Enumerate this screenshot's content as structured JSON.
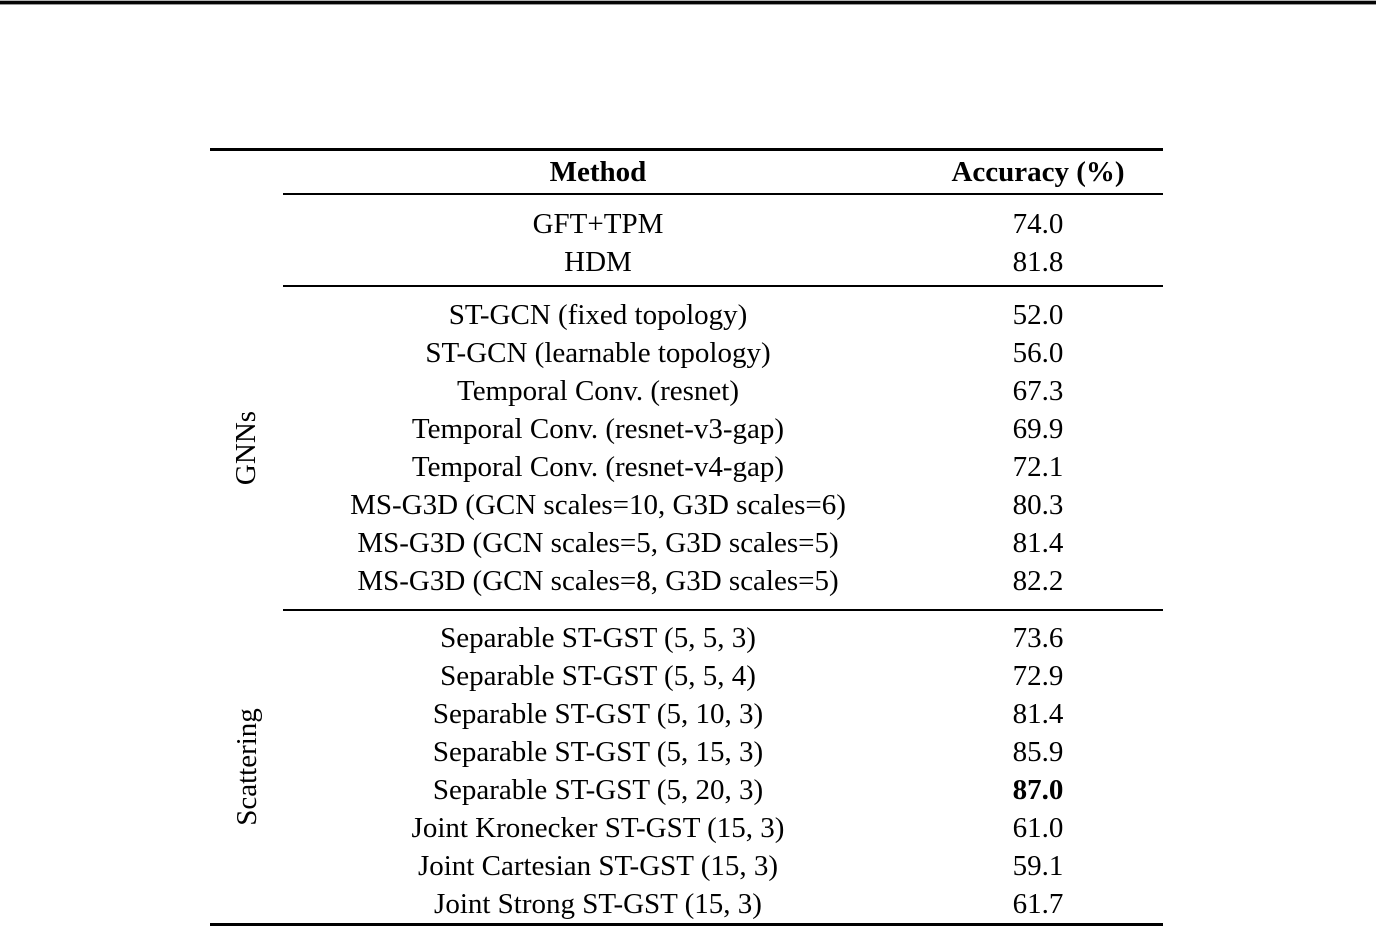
{
  "page": {
    "background_color": "#ffffff",
    "top_edge_color": "#050505"
  },
  "table": {
    "headers": {
      "method": "Method",
      "accuracy": "Accuracy (%)"
    },
    "groups": [
      {
        "label": "",
        "rows": [
          {
            "method": "GFT+TPM",
            "accuracy": "74.0"
          },
          {
            "method": "HDM",
            "accuracy": "81.8"
          }
        ]
      },
      {
        "label": "GNNs",
        "rows": [
          {
            "method": "ST-GCN (fixed topology)",
            "accuracy": "52.0"
          },
          {
            "method": "ST-GCN (learnable topology)",
            "accuracy": "56.0"
          },
          {
            "method": "Temporal Conv. (resnet)",
            "accuracy": "67.3"
          },
          {
            "method": "Temporal Conv. (resnet-v3-gap)",
            "accuracy": "69.9"
          },
          {
            "method": "Temporal Conv. (resnet-v4-gap)",
            "accuracy": "72.1"
          },
          {
            "method": "MS-G3D (GCN scales=10, G3D scales=6)",
            "accuracy": "80.3"
          },
          {
            "method": "MS-G3D (GCN scales=5, G3D scales=5)",
            "accuracy": "81.4"
          },
          {
            "method": "MS-G3D (GCN scales=8, G3D scales=5)",
            "accuracy": "82.2"
          }
        ]
      },
      {
        "label": "Scattering",
        "rows": [
          {
            "method": "Separable ST-GST (5, 5, 3)",
            "accuracy": "73.6"
          },
          {
            "method": "Separable ST-GST (5, 5, 4)",
            "accuracy": "72.9"
          },
          {
            "method": "Separable ST-GST (5, 10, 3)",
            "accuracy": "81.4"
          },
          {
            "method": "Separable ST-GST (5, 15, 3)",
            "accuracy": "85.9"
          },
          {
            "method": "Separable ST-GST (5, 20, 3)",
            "accuracy": "87.0",
            "highlight": "bold"
          },
          {
            "method": "Joint Kronecker ST-GST (15, 3)",
            "accuracy": "61.0"
          },
          {
            "method": "Joint Cartesian ST-GST (15, 3)",
            "accuracy": "59.1"
          },
          {
            "method": "Joint Strong ST-GST (15, 3)",
            "accuracy": "61.7"
          }
        ]
      }
    ]
  }
}
